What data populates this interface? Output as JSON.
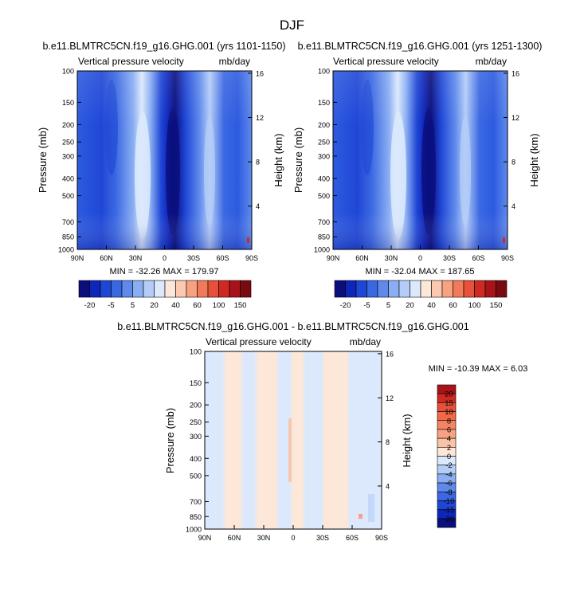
{
  "figure": {
    "title": "DJF"
  },
  "chart_data": [
    {
      "type": "heatmap",
      "title": "b.e11.BLMTRC5CN.f19_g16.GHG.001 (yrs 1101-1150)",
      "left_label": "Vertical pressure velocity",
      "right_label": "mb/day",
      "xlabel": "",
      "ylabel": "Pressure (mb)",
      "y2label": "Height (km)",
      "x_ticks": [
        "90N",
        "60N",
        "30N",
        "0",
        "30S",
        "60S",
        "90S"
      ],
      "y_ticks": [
        100,
        150,
        200,
        250,
        300,
        400,
        500,
        700,
        850,
        1000
      ],
      "y2_ticks": [
        16,
        12,
        8,
        4
      ],
      "ylim": [
        1000,
        100
      ],
      "y_scale": "log",
      "stats": "MIN = -32.26   MAX = 179.97",
      "colorbar_labels": [
        "-20",
        "-5",
        "5",
        "20",
        "40",
        "60",
        "100",
        "150"
      ],
      "colorbar_colors": [
        "#0b0f7e",
        "#0f27b8",
        "#1f47d6",
        "#3b68e2",
        "#5f8aec",
        "#8aaef3",
        "#b4cdf8",
        "#dce9fc",
        "#fde7d9",
        "#fbc8b0",
        "#f8a282",
        "#f27a5a",
        "#e5513a",
        "#ce2a22",
        "#a8131a",
        "#7a0a12"
      ]
    },
    {
      "type": "heatmap",
      "title": "b.e11.BLMTRC5CN.f19_g16.GHG.001 (yrs 1251-1300)",
      "left_label": "Vertical pressure velocity",
      "right_label": "mb/day",
      "xlabel": "",
      "ylabel": "Pressure (mb)",
      "y2label": "Height (km)",
      "x_ticks": [
        "90N",
        "60N",
        "30N",
        "0",
        "30S",
        "60S",
        "90S"
      ],
      "y_ticks": [
        100,
        150,
        200,
        250,
        300,
        400,
        500,
        700,
        850,
        1000
      ],
      "y2_ticks": [
        16,
        12,
        8,
        4
      ],
      "ylim": [
        1000,
        100
      ],
      "y_scale": "log",
      "stats": "MIN = -32.04   MAX = 187.65",
      "colorbar_labels": [
        "-20",
        "-5",
        "5",
        "20",
        "40",
        "60",
        "100",
        "150"
      ],
      "colorbar_colors": [
        "#0b0f7e",
        "#0f27b8",
        "#1f47d6",
        "#3b68e2",
        "#5f8aec",
        "#8aaef3",
        "#b4cdf8",
        "#dce9fc",
        "#fde7d9",
        "#fbc8b0",
        "#f8a282",
        "#f27a5a",
        "#e5513a",
        "#ce2a22",
        "#a8131a",
        "#7a0a12"
      ]
    },
    {
      "type": "heatmap",
      "title": "b.e11.BLMTRC5CN.f19_g16.GHG.001 - b.e11.BLMTRC5CN.f19_g16.GHG.001",
      "left_label": "Vertical pressure velocity",
      "right_label": "mb/day",
      "xlabel": "",
      "ylabel": "Pressure (mb)",
      "y2label": "Height (km)",
      "x_ticks": [
        "90N",
        "60N",
        "30N",
        "0",
        "30S",
        "60S",
        "90S"
      ],
      "y_ticks": [
        100,
        150,
        200,
        250,
        300,
        400,
        500,
        700,
        850,
        1000
      ],
      "y2_ticks": [
        16,
        12,
        8,
        4
      ],
      "ylim": [
        1000,
        100
      ],
      "y_scale": "log",
      "stats": "MIN = -10.39   MAX =   6.03",
      "colorbar_labels": [
        "20",
        "15",
        "10",
        "8",
        "6",
        "4",
        "2",
        "0",
        "-2",
        "-4",
        "-6",
        "-8",
        "-10",
        "-15",
        "-20"
      ],
      "colorbar_colors": [
        "#a8131a",
        "#ce2a22",
        "#e5513a",
        "#f06a48",
        "#f58562",
        "#f8a282",
        "#fbc2a6",
        "#fde7d9",
        "#dce9fc",
        "#b4cdf8",
        "#8aaef3",
        "#5f8aec",
        "#3b68e2",
        "#1f47d6",
        "#0f27b8",
        "#0b0f7e"
      ]
    }
  ]
}
